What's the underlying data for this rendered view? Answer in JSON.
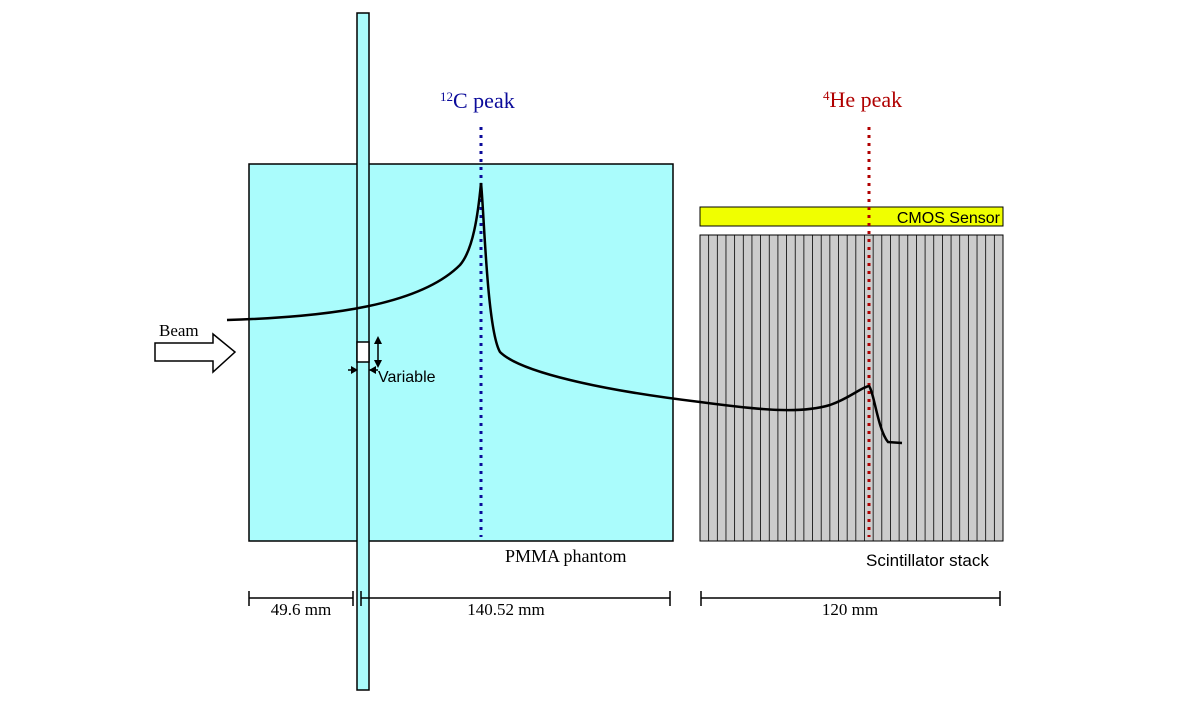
{
  "peaks": {
    "carbon": {
      "mass": "12",
      "label": "C peak",
      "color": "#0b0b9a"
    },
    "helium": {
      "mass": "4",
      "label": "He peak",
      "color": "#b00000"
    }
  },
  "labels": {
    "beam": "Beam",
    "variable": "Variable",
    "phantom": "PMMA phantom",
    "cmos": "CMOS Sensor",
    "scintillator": "Scintillator stack"
  },
  "dimensions": {
    "d1": "49.6 mm",
    "d2": "140.52 mm",
    "d3": "120 mm"
  },
  "colors": {
    "phantom_fill": "#aafcfc",
    "cmos_fill": "#f0ff00",
    "scintillator_fill": "#cccccc"
  }
}
